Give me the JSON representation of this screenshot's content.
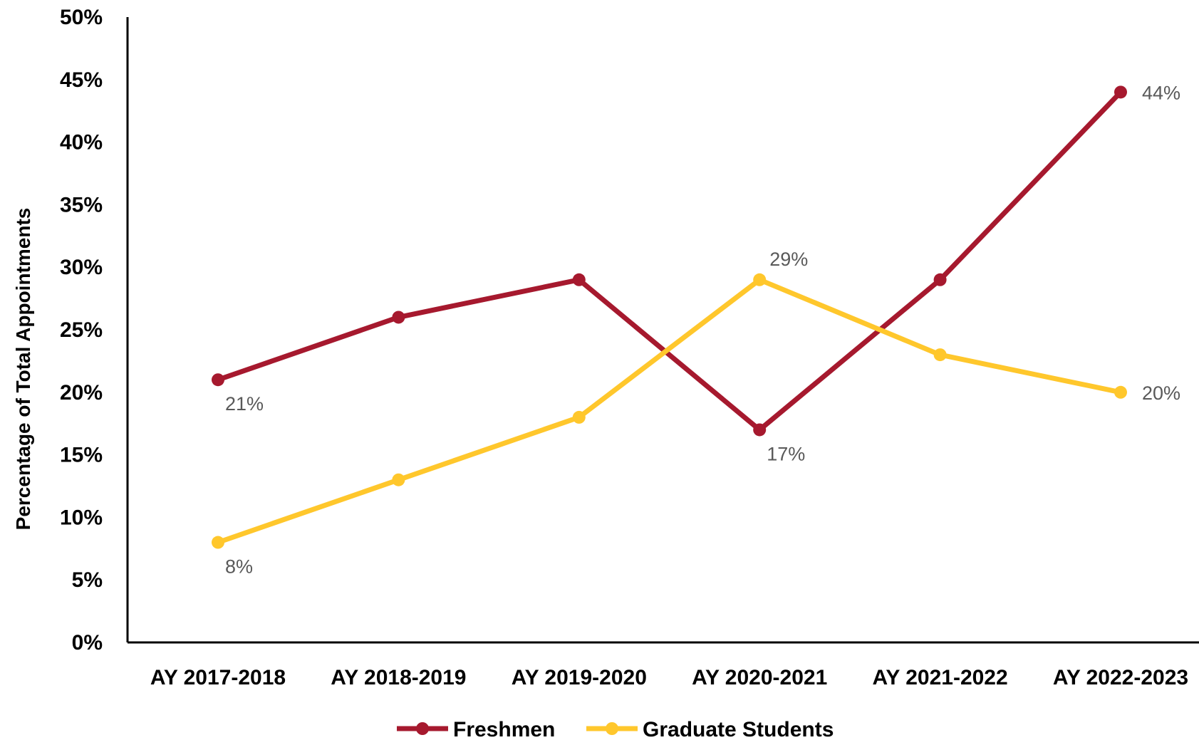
{
  "chart_data": {
    "type": "line",
    "title": "",
    "xlabel": "",
    "ylabel": "Percentage of Total Appointments",
    "categories": [
      "AY 2017-2018",
      "AY 2018-2019",
      "AY 2019-2020",
      "AY 2020-2021",
      "AY 2021-2022",
      "AY 2022-2023"
    ],
    "ylim": [
      0,
      50
    ],
    "yticks": [
      "0%",
      "5%",
      "10%",
      "15%",
      "20%",
      "25%",
      "30%",
      "35%",
      "40%",
      "45%",
      "50%"
    ],
    "grid": false,
    "legend_position": "bottom",
    "series": [
      {
        "name": "Freshmen",
        "color": "#A6192E",
        "values": [
          21,
          26,
          29,
          17,
          29,
          44
        ],
        "data_labels": [
          {
            "index": 0,
            "text": "21%",
            "position": "below"
          },
          {
            "index": 3,
            "text": "17%",
            "position": "below"
          },
          {
            "index": 5,
            "text": "44%",
            "position": "right"
          }
        ]
      },
      {
        "name": "Graduate Students",
        "color": "#FFC72C",
        "values": [
          8,
          13,
          18,
          29,
          23,
          20
        ],
        "data_labels": [
          {
            "index": 0,
            "text": "8%",
            "position": "below"
          },
          {
            "index": 3,
            "text": "29%",
            "position": "above"
          },
          {
            "index": 5,
            "text": "20%",
            "position": "right"
          }
        ]
      }
    ]
  }
}
